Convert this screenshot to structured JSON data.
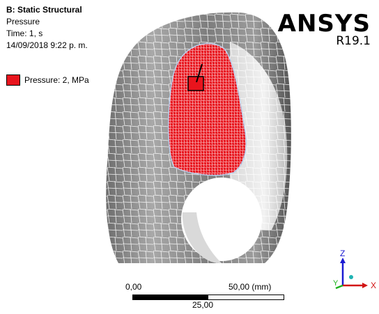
{
  "info": {
    "system": "B: Static Structural",
    "load": "Pressure",
    "time": "Time: 1, s",
    "date": "14/09/2018 9:22 p. m."
  },
  "legend": {
    "label": "Pressure: 2, MPa",
    "color": "#e8141d"
  },
  "brand": {
    "name": "ANSYS",
    "version": "R19.1"
  },
  "scale": {
    "start": "0,00",
    "end": "50,00",
    "unit": "(mm)",
    "mid": "25,00"
  },
  "triad": {
    "z": "Z",
    "y": "Y",
    "x": "X",
    "colors": {
      "x": "#d21414",
      "y": "#1bb21b",
      "z": "#1a1ad2",
      "origin": "#1fb3b3"
    }
  },
  "model": {
    "body_color": "#8a8a8a",
    "highlight_color": "#e8141d",
    "mesh_color": "#ffffff"
  }
}
